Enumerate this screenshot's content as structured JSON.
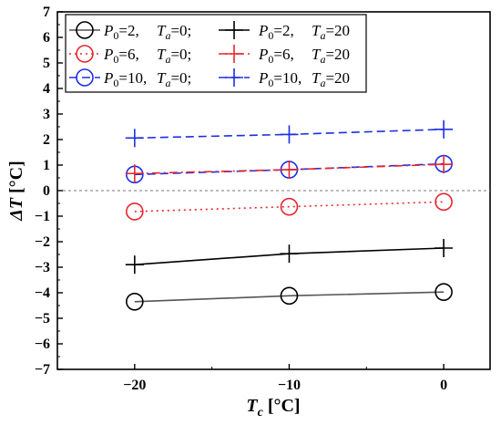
{
  "chart_data": {
    "type": "line",
    "xlabel": "Tc [°C]",
    "xlabel_main": "T",
    "xlabel_sub": "c",
    "xlabel_unit": " [°C]",
    "ylabel": "ΔT [°C]",
    "ylabel_main": "ΔT",
    "ylabel_unit": " [°C]",
    "xlim": [
      -25,
      3
    ],
    "ylim": [
      -7,
      7
    ],
    "x": [
      -20,
      -10,
      0
    ],
    "xticks": [
      -20,
      -10,
      0
    ],
    "xtick_labels": [
      "−20",
      "−10",
      "0"
    ],
    "yticks": [
      -7,
      -6,
      -5,
      -4,
      -3,
      -2,
      -1,
      0,
      1,
      2,
      3,
      4,
      5,
      6,
      7
    ],
    "ytick_labels": [
      "−7",
      "−6",
      "−5",
      "−4",
      "−3",
      "−2",
      "−1",
      "0",
      "1",
      "2",
      "3",
      "4",
      "5",
      "6",
      "7"
    ],
    "zero_line": true,
    "legend_position": "top-left",
    "series": [
      {
        "name": "P0=2, Ta=0;",
        "p0": "2",
        "ta": "0;",
        "values": [
          -4.35,
          -4.12,
          -3.97
        ],
        "color": "#000000",
        "line_color": "#555555",
        "dash": "solid",
        "marker": "circle"
      },
      {
        "name": "P0=6, Ta=0;",
        "p0": "6",
        "ta": "0;",
        "values": [
          -0.82,
          -0.63,
          -0.44
        ],
        "color": "#e8262b",
        "line_color": "#e8262b",
        "dash": "dotted",
        "marker": "circle"
      },
      {
        "name": "P0=10, Ta=0;",
        "p0": "10",
        "ta": "0;",
        "values": [
          0.63,
          0.82,
          1.05
        ],
        "color": "#1c2ee6",
        "line_color": "#1c2ee6",
        "dash": "dashed",
        "marker": "circle"
      },
      {
        "name": "P0=2, Ta=20",
        "p0": "2",
        "ta": "20",
        "values": [
          -2.9,
          -2.47,
          -2.25
        ],
        "color": "#000000",
        "line_color": "#000000",
        "dash": "solid",
        "marker": "plus"
      },
      {
        "name": "P0=6, Ta=20",
        "p0": "6",
        "ta": "20",
        "values": [
          0.67,
          0.82,
          1.03
        ],
        "color": "#e8262b",
        "line_color": "#e8262b",
        "dash": "dashdot",
        "marker": "plus"
      },
      {
        "name": "P0=10, Ta=20",
        "p0": "10",
        "ta": "20",
        "values": [
          2.06,
          2.2,
          2.4
        ],
        "color": "#1c2ee6",
        "line_color": "#1c2ee6",
        "dash": "dashed",
        "marker": "plus"
      }
    ]
  }
}
